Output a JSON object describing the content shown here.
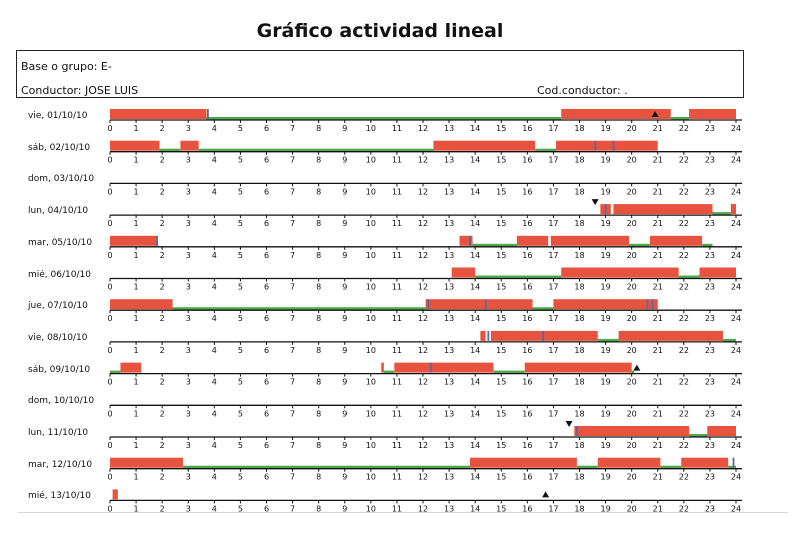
{
  "title": "Gráfico actividad lineal",
  "info": {
    "base_label": "Base o grupo:",
    "base_value": "E-",
    "driver_label": "Conductor:",
    "driver_value": "JOSE LUIS",
    "cod_label": "Cod.conductor:",
    "cod_value": "."
  },
  "colors": {
    "driving": "#e8533f",
    "rest": "#4caa4c",
    "other": "#5a6a9a"
  },
  "chart_data": {
    "type": "gantt",
    "x_ticks": [
      0,
      1,
      2,
      3,
      4,
      5,
      6,
      7,
      8,
      9,
      10,
      11,
      12,
      13,
      14,
      15,
      16,
      17,
      18,
      19,
      20,
      21,
      22,
      23,
      24
    ],
    "xlim": [
      0,
      24
    ],
    "categories": [
      "driving",
      "rest"
    ],
    "rows": [
      {
        "label": "vie, 01/10/10",
        "segments": [
          [
            "r",
            0,
            3.7
          ],
          [
            "g",
            3.7,
            17.3
          ],
          [
            "r",
            17.3,
            21.5
          ],
          [
            "g",
            21.5,
            22.2
          ],
          [
            "r",
            22.2,
            24
          ]
        ],
        "marks": [
          [
            "o",
            3.75
          ],
          [
            "up",
            20.9
          ]
        ]
      },
      {
        "label": "sáb, 02/10/10",
        "segments": [
          [
            "r",
            0,
            1.9
          ],
          [
            "g",
            1.9,
            2.7
          ],
          [
            "r",
            2.7,
            3.4
          ],
          [
            "g",
            3.4,
            12.4
          ],
          [
            "r",
            12.4,
            16.3
          ],
          [
            "g",
            16.3,
            17.1
          ],
          [
            "r",
            17.1,
            21
          ]
        ],
        "marks": [
          [
            "o",
            18.6
          ],
          [
            "o",
            19.3
          ]
        ]
      },
      {
        "label": "dom, 03/10/10",
        "segments": [],
        "marks": []
      },
      {
        "label": "lun, 04/10/10",
        "segments": [
          [
            "r",
            18.8,
            19.2
          ],
          [
            "r",
            19.3,
            23.1
          ],
          [
            "g",
            23.1,
            23.8
          ],
          [
            "r",
            23.8,
            24
          ]
        ],
        "marks": [
          [
            "down",
            18.6
          ],
          [
            "o",
            19.0
          ]
        ]
      },
      {
        "label": "mar, 05/10/10",
        "segments": [
          [
            "r",
            0,
            1.8
          ],
          [
            "r",
            13.4,
            13.9
          ],
          [
            "g",
            13.9,
            15.6
          ],
          [
            "r",
            15.6,
            16.8
          ],
          [
            "r",
            16.9,
            19.9
          ],
          [
            "g",
            19.9,
            20.7
          ],
          [
            "r",
            20.7,
            22.7
          ],
          [
            "g",
            22.7,
            23.1
          ]
        ],
        "marks": [
          [
            "o",
            1.8
          ],
          [
            "o",
            13.8
          ]
        ]
      },
      {
        "label": "mié, 06/10/10",
        "segments": [
          [
            "r",
            13.1,
            14
          ],
          [
            "g",
            14,
            17.3
          ],
          [
            "r",
            17.3,
            21.8
          ],
          [
            "g",
            21.8,
            22.6
          ],
          [
            "r",
            22.6,
            24
          ]
        ],
        "marks": []
      },
      {
        "label": "jue, 07/10/10",
        "segments": [
          [
            "r",
            0,
            2.4
          ],
          [
            "g",
            2.4,
            12.1
          ],
          [
            "r",
            12.1,
            16.2
          ],
          [
            "g",
            16.2,
            17
          ],
          [
            "r",
            17,
            21
          ]
        ],
        "marks": [
          [
            "o",
            12.2
          ],
          [
            "o",
            14.4
          ],
          [
            "o",
            20.6
          ],
          [
            "o",
            20.8
          ]
        ]
      },
      {
        "label": "vie, 08/10/10",
        "segments": [
          [
            "r",
            14.2,
            14.4
          ],
          [
            "r",
            14.6,
            18.7
          ],
          [
            "g",
            18.7,
            19.5
          ],
          [
            "r",
            19.5,
            23.5
          ],
          [
            "g",
            23.5,
            24
          ]
        ],
        "marks": [
          [
            "o",
            14.5
          ],
          [
            "o",
            16.6
          ]
        ]
      },
      {
        "label": "sáb, 09/10/10",
        "segments": [
          [
            "g",
            0,
            0.4
          ],
          [
            "r",
            0.4,
            1.2
          ],
          [
            "r",
            10.4,
            10.5
          ],
          [
            "g",
            10.5,
            10.9
          ],
          [
            "r",
            10.9,
            14.7
          ],
          [
            "g",
            14.7,
            15.9
          ],
          [
            "r",
            15.9,
            20
          ],
          [
            "g",
            20,
            20.1
          ]
        ],
        "marks": [
          [
            "o",
            12.3
          ],
          [
            "up",
            20.2
          ]
        ]
      },
      {
        "label": "dom, 10/10/10",
        "segments": [],
        "marks": []
      },
      {
        "label": "lun, 11/10/10",
        "segments": [
          [
            "r",
            17.8,
            22.2
          ],
          [
            "g",
            22.2,
            22.9
          ],
          [
            "r",
            22.9,
            24
          ]
        ],
        "marks": [
          [
            "down",
            17.6
          ],
          [
            "o",
            17.9
          ]
        ]
      },
      {
        "label": "mar, 12/10/10",
        "segments": [
          [
            "r",
            0,
            2.8
          ],
          [
            "g",
            2.8,
            13.8
          ],
          [
            "r",
            13.8,
            17.9
          ],
          [
            "g",
            17.9,
            18.7
          ],
          [
            "r",
            18.7,
            21.1
          ],
          [
            "g",
            21.1,
            21.9
          ],
          [
            "r",
            21.9,
            23.7
          ],
          [
            "g",
            23.7,
            24
          ]
        ],
        "marks": [
          [
            "o",
            23.9
          ]
        ]
      },
      {
        "label": "mié, 13/10/10",
        "segments": [
          [
            "r",
            0.1,
            0.3
          ]
        ],
        "marks": [
          [
            "up",
            16.7
          ]
        ]
      }
    ]
  }
}
